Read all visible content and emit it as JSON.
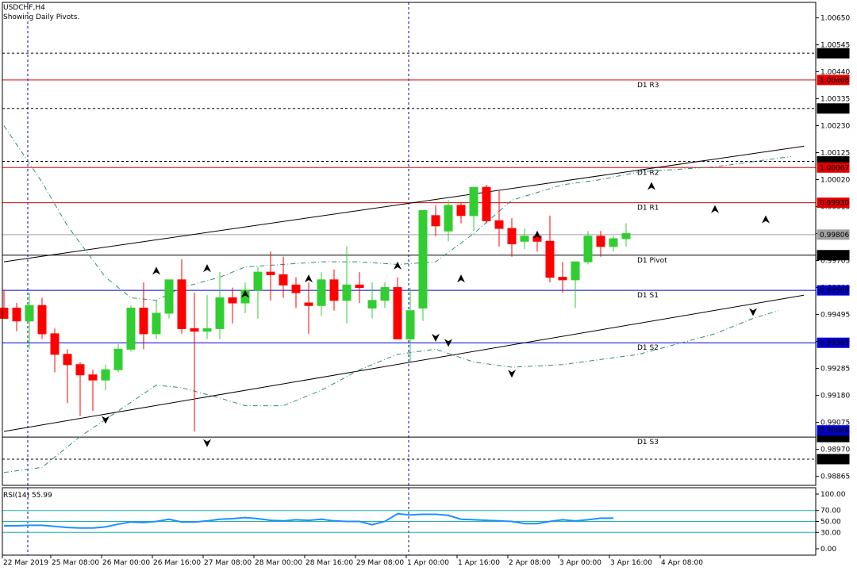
{
  "header": {
    "symbol": "USDCHF,H4",
    "subtitle": "Showing Daily Pivots."
  },
  "rsi": {
    "label": "RSI(14) 55.99",
    "levels": [
      "100.00",
      "70.00",
      "50.00",
      "30.00",
      "0.00"
    ],
    "color": "#1e90ff"
  },
  "colors": {
    "bull": "#32cd32",
    "bear": "#ff0000",
    "pivot_red": "#e00000",
    "pivot_black": "#000000",
    "pivot_blue": "#0000cc"
  },
  "chart_data": {
    "type": "candlestick",
    "ylim": [
      0.9883,
      1.0071
    ],
    "price_ticks": [
      "1.00650",
      "1.00545",
      "1.00440",
      "1.00335",
      "1.00230",
      "1.00125",
      "1.00020",
      "0.99915",
      "0.99810",
      "0.99705",
      "0.99600",
      "0.99495",
      "0.99390",
      "0.99285",
      "0.99180",
      "0.99075",
      "0.98970",
      "0.98865"
    ],
    "time_labels": [
      "22 Mar 2019",
      "25 Mar 08:00",
      "26 Mar 00:00",
      "26 Mar 16:00",
      "27 Mar 08:00",
      "28 Mar 00:00",
      "28 Mar 16:00",
      "29 Mar 08:00",
      "1 Apr 00:00",
      "1 Apr 16:00",
      "2 Apr 08:00",
      "3 Apr 00:00",
      "3 Apr 16:00",
      "4 Apr 08:00"
    ],
    "levels": [
      {
        "name": "D1 R3",
        "value": 1.00408,
        "tag": "1.00408",
        "kind": "red"
      },
      {
        "name": "D1 R2",
        "value": 1.00067,
        "tag": "1.00067",
        "kind": "red"
      },
      {
        "name": "D1 R1",
        "value": 0.9993,
        "tag": "0.99930",
        "kind": "red"
      },
      {
        "name": "D1 Pivot",
        "value": 0.99726,
        "tag": "0.99726",
        "kind": "black"
      },
      {
        "name": "D1 S1",
        "value": 0.99589,
        "tag": "0.99589",
        "kind": "blue"
      },
      {
        "name": "D1 S2",
        "value": 0.99385,
        "tag": "0.99385",
        "kind": "blue"
      },
      {
        "name": "D1 S3",
        "value": 0.99018,
        "tag": "0.99018",
        "kind": "black"
      }
    ],
    "dashed_levels": [
      {
        "value": 1.00512,
        "tag": "1.00512"
      },
      {
        "value": 1.00297,
        "tag": "1.00297"
      },
      {
        "value": 1.00091,
        "tag": "1.00091"
      },
      {
        "value": 0.98932,
        "tag": "0.98932"
      }
    ],
    "extra_tags": [
      {
        "value": 0.99806,
        "tag": "0.99806",
        "kind": "gray"
      },
      {
        "value": 0.99044,
        "tag": "0.99044",
        "kind": "blue"
      }
    ],
    "candles": [
      [
        0.9952,
        0.9959,
        0.9948,
        0.9948
      ],
      [
        0.9952,
        0.9954,
        0.9943,
        0.9947
      ],
      [
        0.9947,
        0.9958,
        0.9936,
        0.9953
      ],
      [
        0.9953,
        0.9956,
        0.994,
        0.9942
      ],
      [
        0.9942,
        0.9944,
        0.9927,
        0.9934
      ],
      [
        0.9934,
        0.9936,
        0.9915,
        0.993
      ],
      [
        0.993,
        0.9931,
        0.991,
        0.9926
      ],
      [
        0.9926,
        0.9928,
        0.9912,
        0.9924
      ],
      [
        0.9924,
        0.993,
        0.992,
        0.9928
      ],
      [
        0.9928,
        0.9938,
        0.9927,
        0.9936
      ],
      [
        0.9936,
        0.9953,
        0.9935,
        0.9952
      ],
      [
        0.9952,
        0.9962,
        0.9936,
        0.9942
      ],
      [
        0.9942,
        0.9955,
        0.994,
        0.995
      ],
      [
        0.995,
        0.9962,
        0.9948,
        0.9963
      ],
      [
        0.9963,
        0.9971,
        0.9942,
        0.9944
      ],
      [
        0.9944,
        0.9958,
        0.9904,
        0.9943
      ],
      [
        0.9943,
        0.9957,
        0.994,
        0.9944
      ],
      [
        0.9944,
        0.9966,
        0.994,
        0.9956
      ],
      [
        0.9956,
        0.996,
        0.9946,
        0.9954
      ],
      [
        0.9954,
        0.9962,
        0.995,
        0.9959
      ],
      [
        0.9959,
        0.9968,
        0.9948,
        0.9966
      ],
      [
        0.9966,
        0.9974,
        0.9955,
        0.9965
      ],
      [
        0.9965,
        0.9972,
        0.9956,
        0.9961
      ],
      [
        0.9961,
        0.9964,
        0.9952,
        0.9958
      ],
      [
        0.9954,
        0.9962,
        0.9942,
        0.9953
      ],
      [
        0.9953,
        0.9966,
        0.9949,
        0.9963
      ],
      [
        0.9963,
        0.9967,
        0.9951,
        0.9955
      ],
      [
        0.9955,
        0.9976,
        0.9946,
        0.9961
      ],
      [
        0.9961,
        0.9966,
        0.9954,
        0.996
      ],
      [
        0.9952,
        0.9962,
        0.9948,
        0.9955
      ],
      [
        0.9955,
        0.9962,
        0.9952,
        0.996
      ],
      [
        0.996,
        0.9964,
        0.994,
        0.994
      ],
      [
        0.994,
        0.996,
        0.9931,
        0.9951
      ],
      [
        0.9952,
        0.999,
        0.9947,
        0.999
      ],
      [
        0.9988,
        0.9992,
        0.998,
        0.9984
      ],
      [
        0.9982,
        0.9994,
        0.9978,
        0.9992
      ],
      [
        0.9992,
        0.9993,
        0.9985,
        0.9988
      ],
      [
        0.9988,
        0.9998,
        0.9982,
        0.9999
      ],
      [
        0.9999,
        1.0,
        0.9985,
        0.9986
      ],
      [
        0.9986,
        0.9998,
        0.9976,
        0.9983
      ],
      [
        0.9983,
        0.9987,
        0.9972,
        0.9977
      ],
      [
        0.9978,
        0.9983,
        0.9975,
        0.998
      ],
      [
        0.998,
        0.9982,
        0.9974,
        0.9978
      ],
      [
        0.9978,
        0.9988,
        0.9962,
        0.9964
      ],
      [
        0.9964,
        0.997,
        0.9958,
        0.9963
      ],
      [
        0.9963,
        0.9969,
        0.9952,
        0.997
      ],
      [
        0.997,
        0.9982,
        0.9969,
        0.998
      ],
      [
        0.998,
        0.9982,
        0.9972,
        0.9976
      ],
      [
        0.9976,
        0.998,
        0.9974,
        0.9979
      ],
      [
        0.9979,
        0.9985,
        0.9976,
        0.9981
      ]
    ],
    "fractals_up": [
      [
        12,
        0.9965
      ],
      [
        16,
        0.9966
      ],
      [
        19,
        0.9956
      ],
      [
        24,
        0.9962
      ],
      [
        31,
        0.9967
      ],
      [
        36,
        0.9962
      ],
      [
        42,
        0.9979
      ],
      [
        51,
        0.9998
      ],
      [
        56,
        0.9989
      ],
      [
        60,
        0.9985
      ]
    ],
    "fractals_down": [
      [
        8,
        0.991
      ],
      [
        16,
        0.9901
      ],
      [
        34,
        0.9942
      ],
      [
        35,
        0.994
      ],
      [
        40,
        0.9928
      ],
      [
        59,
        0.9952
      ]
    ],
    "trendlines": [
      {
        "start": [
          0,
          0.997
        ],
        "end": [
          63,
          1.0015
        ]
      },
      {
        "start": [
          0,
          0.9904
        ],
        "end": [
          63,
          0.9957
        ]
      }
    ],
    "envelope_upper": [
      [
        0,
        1.0023
      ],
      [
        3,
        1.0001
      ],
      [
        5,
        0.9984
      ],
      [
        8,
        0.9964
      ],
      [
        10,
        0.9956
      ],
      [
        12,
        0.9955
      ],
      [
        14,
        0.996
      ],
      [
        17,
        0.9964
      ],
      [
        19,
        0.9968
      ],
      [
        22,
        0.9969
      ],
      [
        25,
        0.997
      ],
      [
        28,
        0.997
      ],
      [
        31,
        0.9969
      ],
      [
        34,
        0.997
      ],
      [
        37,
        0.9981
      ],
      [
        40,
        0.9994
      ],
      [
        44,
        1.0
      ],
      [
        47,
        1.0002
      ],
      [
        50,
        1.0005
      ],
      [
        53,
        1.0006
      ],
      [
        56,
        1.0007
      ],
      [
        59,
        1.0009
      ],
      [
        62,
        1.0011
      ]
    ],
    "envelope_lower": [
      [
        0,
        0.9888
      ],
      [
        3,
        0.989
      ],
      [
        6,
        0.9902
      ],
      [
        9,
        0.9912
      ],
      [
        12,
        0.9922
      ],
      [
        14,
        0.9921
      ],
      [
        17,
        0.9917
      ],
      [
        19,
        0.9914
      ],
      [
        22,
        0.9914
      ],
      [
        25,
        0.992
      ],
      [
        28,
        0.9928
      ],
      [
        31,
        0.9934
      ],
      [
        34,
        0.9936
      ],
      [
        37,
        0.9931
      ],
      [
        40,
        0.9929
      ],
      [
        44,
        0.993
      ],
      [
        47,
        0.9932
      ],
      [
        50,
        0.9934
      ],
      [
        53,
        0.9938
      ],
      [
        56,
        0.9942
      ],
      [
        59,
        0.9948
      ],
      [
        61,
        0.9951
      ]
    ],
    "rsi_values": [
      42,
      42,
      43,
      43,
      41,
      39,
      38,
      38,
      40,
      45,
      49,
      48,
      50,
      54,
      49,
      49,
      51,
      54,
      55,
      57,
      55,
      52,
      51,
      53,
      52,
      54,
      51,
      50,
      50,
      44,
      50,
      64,
      62,
      63,
      63,
      61,
      54,
      53,
      52,
      51,
      50,
      46,
      46,
      50,
      53,
      51,
      53,
      56,
      56
    ]
  }
}
